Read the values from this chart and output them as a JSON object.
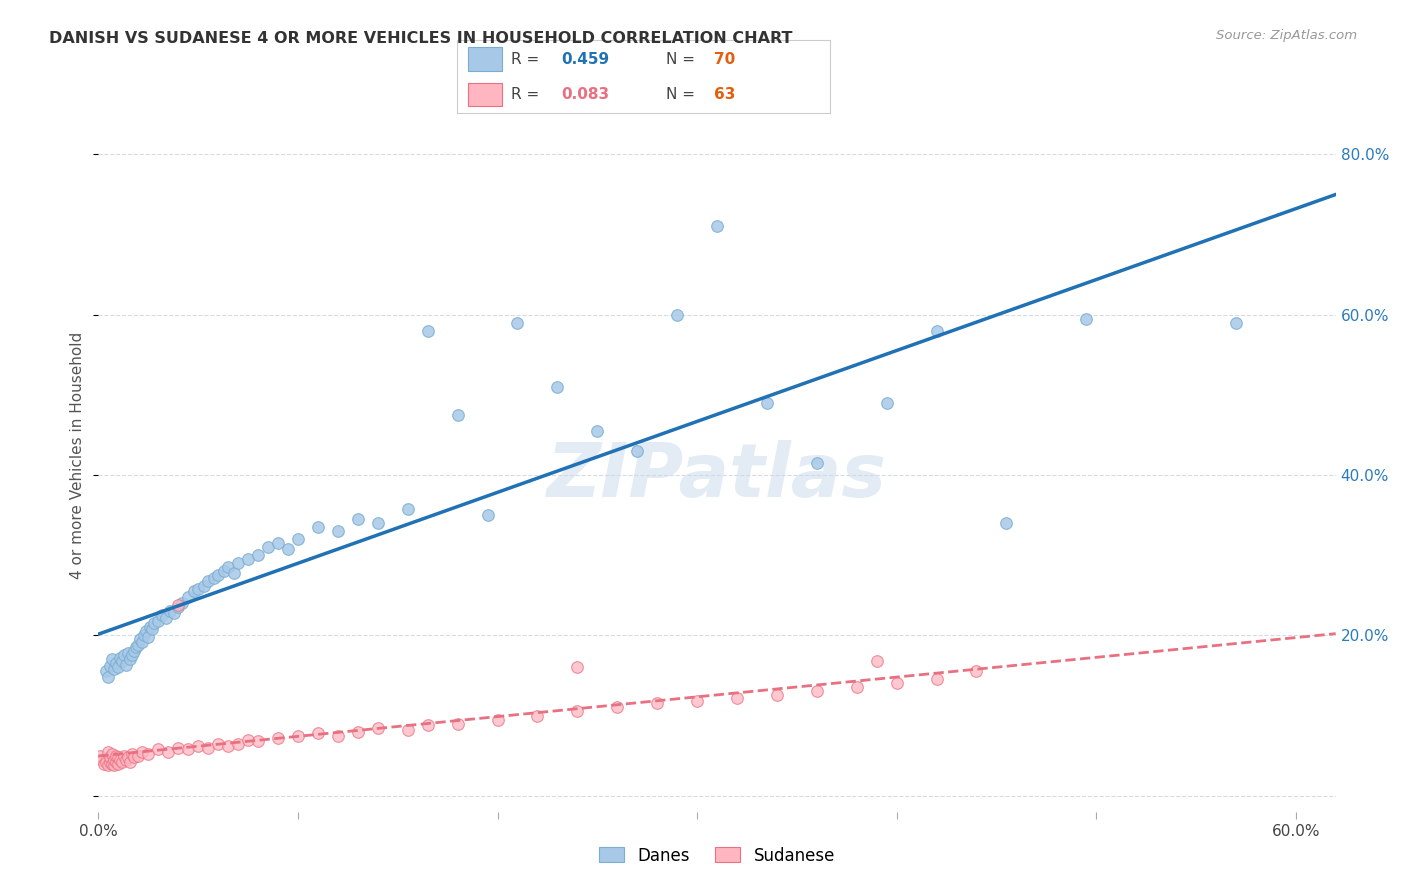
{
  "title": "DANISH VS SUDANESE 4 OR MORE VEHICLES IN HOUSEHOLD CORRELATION CHART",
  "source": "Source: ZipAtlas.com",
  "ylabel": "4 or more Vehicles in Household",
  "xlim": [
    0.0,
    0.62
  ],
  "ylim": [
    -0.02,
    0.87
  ],
  "xtick_vals": [
    0.0,
    0.1,
    0.2,
    0.3,
    0.4,
    0.5,
    0.6
  ],
  "xtick_labels": [
    "0.0%",
    "",
    "",
    "",
    "",
    "",
    "60.0%"
  ],
  "ytick_vals": [
    0.0,
    0.2,
    0.4,
    0.6,
    0.8
  ],
  "ytick_labels": [
    "",
    "20.0%",
    "40.0%",
    "60.0%",
    "80.0%"
  ],
  "danes_R": "0.459",
  "danes_N": "70",
  "sudanese_R": "0.083",
  "sudanese_N": "63",
  "danes_color": "#a8c8e8",
  "danes_edge_color": "#7aaed0",
  "danes_line_color": "#2171b5",
  "sudanese_color": "#ffb6c1",
  "sudanese_edge_color": "#e87080",
  "sudanese_line_color": "#e87080",
  "background_color": "#ffffff",
  "grid_color": "#d5dce8",
  "watermark": "ZIPatlas",
  "danes_x": [
    0.004,
    0.005,
    0.006,
    0.007,
    0.008,
    0.009,
    0.01,
    0.011,
    0.012,
    0.013,
    0.014,
    0.015,
    0.016,
    0.017,
    0.018,
    0.019,
    0.02,
    0.021,
    0.022,
    0.023,
    0.024,
    0.025,
    0.026,
    0.027,
    0.028,
    0.03,
    0.032,
    0.034,
    0.036,
    0.038,
    0.04,
    0.042,
    0.045,
    0.048,
    0.05,
    0.053,
    0.055,
    0.058,
    0.06,
    0.063,
    0.065,
    0.068,
    0.07,
    0.075,
    0.08,
    0.085,
    0.09,
    0.095,
    0.1,
    0.11,
    0.12,
    0.13,
    0.14,
    0.155,
    0.165,
    0.18,
    0.195,
    0.21,
    0.23,
    0.25,
    0.27,
    0.29,
    0.31,
    0.335,
    0.36,
    0.395,
    0.42,
    0.455,
    0.495,
    0.57
  ],
  "danes_y": [
    0.155,
    0.148,
    0.162,
    0.17,
    0.158,
    0.165,
    0.16,
    0.172,
    0.168,
    0.175,
    0.163,
    0.178,
    0.17,
    0.175,
    0.18,
    0.185,
    0.188,
    0.195,
    0.192,
    0.2,
    0.205,
    0.198,
    0.21,
    0.208,
    0.215,
    0.218,
    0.225,
    0.222,
    0.23,
    0.228,
    0.235,
    0.24,
    0.248,
    0.255,
    0.258,
    0.262,
    0.268,
    0.272,
    0.275,
    0.28,
    0.285,
    0.278,
    0.29,
    0.295,
    0.3,
    0.31,
    0.315,
    0.308,
    0.32,
    0.335,
    0.33,
    0.345,
    0.34,
    0.358,
    0.58,
    0.475,
    0.35,
    0.59,
    0.51,
    0.455,
    0.43,
    0.6,
    0.71,
    0.49,
    0.415,
    0.49,
    0.58,
    0.34,
    0.595,
    0.59
  ],
  "sudanese_x": [
    0.001,
    0.002,
    0.003,
    0.004,
    0.005,
    0.005,
    0.006,
    0.006,
    0.007,
    0.007,
    0.008,
    0.008,
    0.009,
    0.009,
    0.01,
    0.01,
    0.011,
    0.012,
    0.013,
    0.014,
    0.015,
    0.016,
    0.017,
    0.018,
    0.02,
    0.022,
    0.025,
    0.03,
    0.035,
    0.04,
    0.045,
    0.05,
    0.055,
    0.06,
    0.065,
    0.07,
    0.075,
    0.08,
    0.09,
    0.1,
    0.11,
    0.12,
    0.13,
    0.14,
    0.155,
    0.165,
    0.18,
    0.2,
    0.22,
    0.24,
    0.26,
    0.28,
    0.3,
    0.32,
    0.34,
    0.36,
    0.38,
    0.4,
    0.42,
    0.44,
    0.24,
    0.39,
    0.04
  ],
  "sudanese_y": [
    0.05,
    0.045,
    0.04,
    0.042,
    0.038,
    0.055,
    0.042,
    0.048,
    0.04,
    0.052,
    0.038,
    0.045,
    0.042,
    0.05,
    0.04,
    0.048,
    0.045,
    0.042,
    0.05,
    0.045,
    0.048,
    0.042,
    0.052,
    0.048,
    0.05,
    0.055,
    0.052,
    0.058,
    0.055,
    0.06,
    0.058,
    0.062,
    0.06,
    0.065,
    0.062,
    0.065,
    0.07,
    0.068,
    0.072,
    0.075,
    0.078,
    0.075,
    0.08,
    0.085,
    0.082,
    0.088,
    0.09,
    0.095,
    0.1,
    0.105,
    0.11,
    0.115,
    0.118,
    0.122,
    0.125,
    0.13,
    0.135,
    0.14,
    0.145,
    0.155,
    0.16,
    0.168,
    0.238
  ]
}
